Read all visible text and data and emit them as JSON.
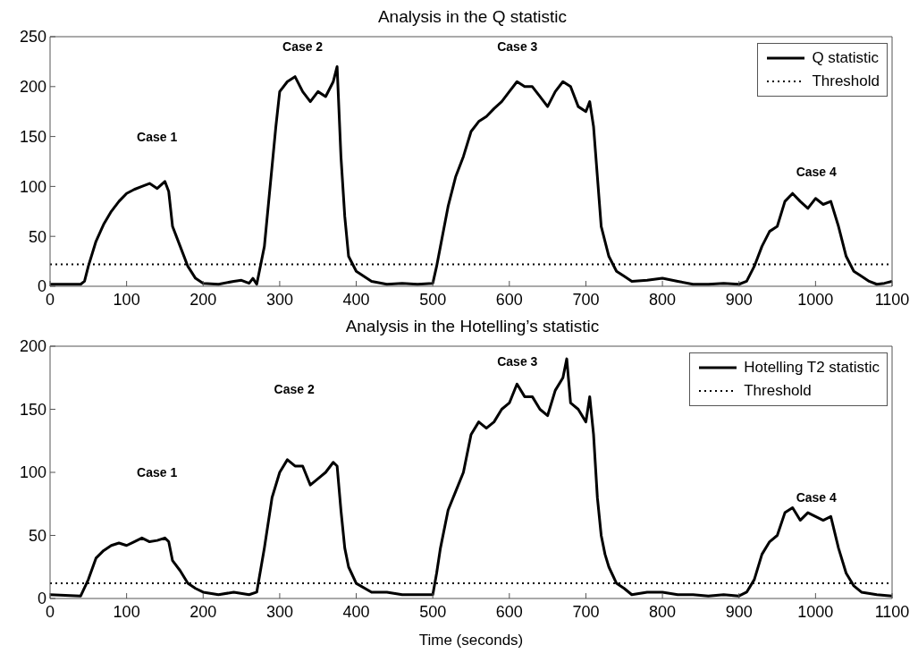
{
  "chart_data": [
    {
      "type": "line",
      "title": "Analysis in the Q statistic",
      "xlim": [
        0,
        1100
      ],
      "xticks": [
        0,
        100,
        200,
        300,
        400,
        500,
        600,
        700,
        800,
        900,
        1000,
        1100
      ],
      "ylim": [
        0,
        250
      ],
      "yticks": [
        0,
        50,
        100,
        150,
        200,
        250
      ],
      "legend": "top right",
      "series": [
        {
          "name": "Q statistic",
          "color": "#000000",
          "line_style": "solid",
          "x": [
            0,
            20,
            40,
            45,
            50,
            60,
            70,
            80,
            90,
            100,
            110,
            120,
            130,
            140,
            150,
            155,
            160,
            170,
            180,
            190,
            200,
            220,
            240,
            250,
            260,
            265,
            270,
            280,
            290,
            295,
            300,
            310,
            320,
            330,
            340,
            350,
            360,
            370,
            375,
            380,
            385,
            390,
            400,
            420,
            440,
            460,
            480,
            500,
            505,
            510,
            520,
            530,
            540,
            550,
            560,
            570,
            580,
            590,
            600,
            610,
            620,
            630,
            640,
            650,
            660,
            670,
            680,
            690,
            700,
            705,
            710,
            715,
            720,
            725,
            730,
            740,
            750,
            760,
            780,
            800,
            820,
            840,
            860,
            880,
            900,
            910,
            920,
            930,
            940,
            950,
            960,
            970,
            980,
            990,
            1000,
            1010,
            1020,
            1030,
            1040,
            1050,
            1060,
            1070,
            1080,
            1090,
            1100
          ],
          "values": [
            2,
            2,
            2,
            5,
            20,
            45,
            62,
            75,
            85,
            93,
            97,
            100,
            103,
            98,
            105,
            95,
            60,
            40,
            20,
            8,
            3,
            2,
            5,
            6,
            3,
            8,
            2,
            40,
            120,
            160,
            195,
            205,
            210,
            195,
            185,
            195,
            190,
            205,
            220,
            130,
            70,
            30,
            15,
            5,
            2,
            3,
            2,
            3,
            20,
            40,
            80,
            110,
            130,
            155,
            165,
            170,
            178,
            185,
            195,
            205,
            200,
            200,
            190,
            180,
            195,
            205,
            200,
            180,
            175,
            185,
            160,
            110,
            60,
            45,
            30,
            15,
            10,
            5,
            6,
            8,
            5,
            2,
            2,
            3,
            2,
            5,
            20,
            40,
            55,
            60,
            85,
            93,
            85,
            78,
            88,
            82,
            85,
            60,
            30,
            15,
            10,
            5,
            2,
            3,
            5
          ]
        },
        {
          "name": "Threshold",
          "color": "#000000",
          "line_style": "dotted",
          "x": [
            0,
            1100
          ],
          "values": [
            22,
            22
          ]
        }
      ],
      "annotations": [
        "Case 1",
        "Case 2",
        "Case 3",
        "Case 4"
      ]
    },
    {
      "type": "line",
      "title": "Analysis in the Hotelling’s statistic",
      "xlabel": "Time (seconds)",
      "xlim": [
        0,
        1100
      ],
      "xticks": [
        0,
        100,
        200,
        300,
        400,
        500,
        600,
        700,
        800,
        900,
        1000,
        1100
      ],
      "ylim": [
        0,
        200
      ],
      "yticks": [
        0,
        50,
        100,
        150,
        200
      ],
      "legend": "top right",
      "series": [
        {
          "name": "Hotelling T2 statistic",
          "color": "#000000",
          "line_style": "solid",
          "x": [
            0,
            40,
            50,
            60,
            70,
            80,
            90,
            100,
            110,
            120,
            130,
            140,
            150,
            155,
            160,
            170,
            180,
            190,
            200,
            220,
            240,
            260,
            270,
            280,
            290,
            300,
            310,
            320,
            330,
            340,
            350,
            360,
            370,
            375,
            380,
            385,
            390,
            400,
            420,
            440,
            460,
            480,
            500,
            505,
            510,
            520,
            530,
            540,
            550,
            560,
            570,
            580,
            590,
            600,
            610,
            620,
            630,
            640,
            650,
            660,
            670,
            675,
            680,
            690,
            700,
            705,
            710,
            715,
            720,
            725,
            730,
            740,
            750,
            760,
            780,
            800,
            820,
            840,
            860,
            880,
            900,
            910,
            920,
            930,
            940,
            950,
            960,
            970,
            980,
            990,
            1000,
            1010,
            1020,
            1030,
            1040,
            1050,
            1060,
            1080,
            1100
          ],
          "values": [
            3,
            2,
            15,
            32,
            38,
            42,
            44,
            42,
            45,
            48,
            45,
            46,
            48,
            45,
            30,
            22,
            12,
            8,
            5,
            3,
            5,
            3,
            5,
            40,
            80,
            100,
            110,
            105,
            105,
            90,
            95,
            100,
            108,
            105,
            70,
            40,
            25,
            12,
            5,
            5,
            3,
            3,
            3,
            20,
            40,
            70,
            85,
            100,
            130,
            140,
            135,
            140,
            150,
            155,
            170,
            160,
            160,
            150,
            145,
            165,
            175,
            190,
            155,
            150,
            140,
            160,
            130,
            80,
            50,
            35,
            25,
            12,
            8,
            3,
            5,
            5,
            3,
            3,
            2,
            3,
            2,
            5,
            15,
            35,
            45,
            50,
            68,
            72,
            62,
            68,
            65,
            62,
            65,
            40,
            20,
            10,
            5,
            3,
            2
          ]
        },
        {
          "name": "Threshold",
          "color": "#000000",
          "line_style": "dotted",
          "x": [
            0,
            1100
          ],
          "values": [
            12,
            12
          ]
        }
      ],
      "annotations": [
        "Case 1",
        "Case 2",
        "Case 3",
        "Case 4"
      ]
    }
  ]
}
